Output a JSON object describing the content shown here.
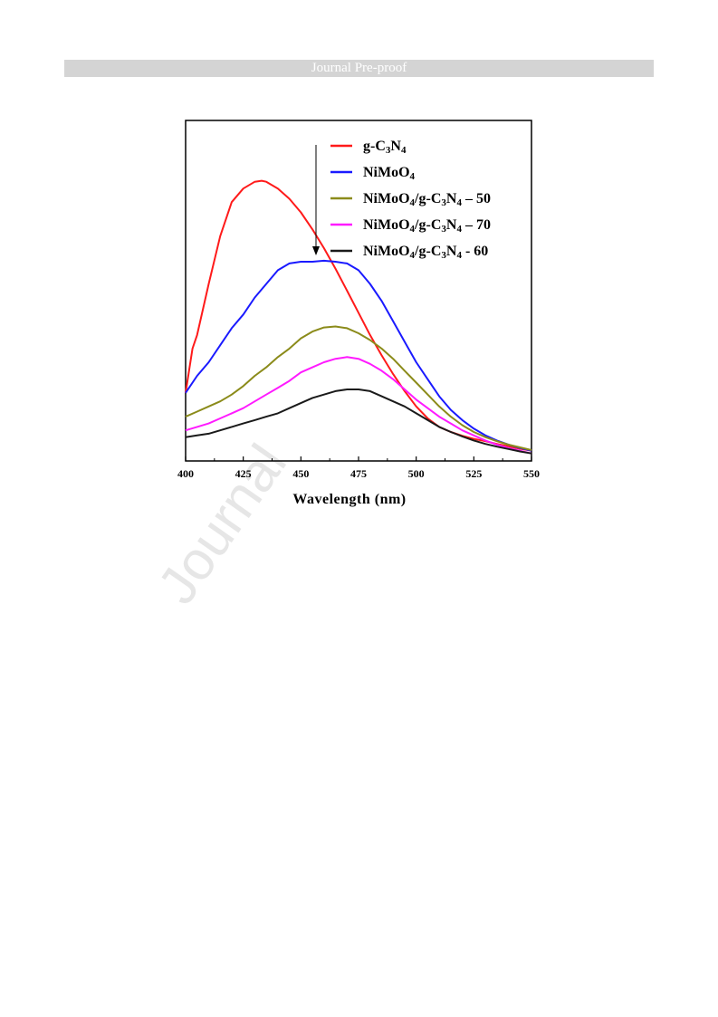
{
  "header": {
    "banner_text": "Journal Pre-proof"
  },
  "watermark": {
    "text": "Journal"
  },
  "chart_data": {
    "type": "line",
    "title": "",
    "xlabel": "Wavelength (nm)",
    "ylabel": "",
    "xlim": [
      400,
      550
    ],
    "ylim": [
      0,
      1
    ],
    "xticks": [
      400,
      425,
      450,
      475,
      500,
      525,
      550
    ],
    "grid": false,
    "legend_position": "top-right",
    "legend_arrow": "down",
    "series": [
      {
        "name": "g-C3N4",
        "legend_parts": [
          [
            "g-C",
            ""
          ],
          [
            "3",
            "sub"
          ],
          [
            "N",
            ""
          ],
          [
            "4",
            "sub"
          ]
        ],
        "color": "#ff1a1a",
        "x": [
          400,
          403,
          405,
          410,
          415,
          420,
          425,
          430,
          433,
          435,
          440,
          445,
          450,
          455,
          460,
          465,
          470,
          475,
          480,
          485,
          490,
          495,
          500,
          505,
          510,
          515,
          520,
          525,
          530,
          535,
          540,
          545,
          550
        ],
        "y": [
          0.2,
          0.33,
          0.37,
          0.52,
          0.66,
          0.76,
          0.8,
          0.82,
          0.823,
          0.82,
          0.8,
          0.77,
          0.73,
          0.68,
          0.625,
          0.565,
          0.5,
          0.435,
          0.37,
          0.31,
          0.255,
          0.205,
          0.16,
          0.125,
          0.1,
          0.085,
          0.074,
          0.065,
          0.058,
          0.05,
          0.043,
          0.036,
          0.03
        ]
      },
      {
        "name": "NiMoO4",
        "legend_parts": [
          [
            "NiMoO",
            ""
          ],
          [
            "4",
            "sub"
          ]
        ],
        "color": "#1a1aff",
        "x": [
          400,
          405,
          410,
          415,
          420,
          425,
          430,
          435,
          440,
          445,
          450,
          455,
          460,
          465,
          470,
          475,
          480,
          485,
          490,
          495,
          500,
          505,
          510,
          515,
          520,
          525,
          530,
          535,
          540,
          545,
          550
        ],
        "y": [
          0.2,
          0.25,
          0.29,
          0.34,
          0.39,
          0.43,
          0.48,
          0.52,
          0.56,
          0.58,
          0.585,
          0.585,
          0.588,
          0.585,
          0.58,
          0.56,
          0.52,
          0.47,
          0.41,
          0.35,
          0.29,
          0.24,
          0.19,
          0.15,
          0.12,
          0.095,
          0.075,
          0.06,
          0.048,
          0.038,
          0.03
        ]
      },
      {
        "name": "NiMoO4/g-C3N4 – 50",
        "legend_parts": [
          [
            "NiMoO",
            ""
          ],
          [
            "4",
            "sub"
          ],
          [
            "/g-C",
            ""
          ],
          [
            "3",
            "sub"
          ],
          [
            "N",
            ""
          ],
          [
            "4",
            "sub"
          ],
          [
            " – 50",
            ""
          ]
        ],
        "color": "#8b8b1a",
        "x": [
          400,
          405,
          410,
          415,
          420,
          425,
          430,
          435,
          440,
          445,
          450,
          455,
          460,
          465,
          470,
          475,
          480,
          485,
          490,
          495,
          500,
          505,
          510,
          515,
          520,
          525,
          530,
          535,
          540,
          545,
          550
        ],
        "y": [
          0.13,
          0.145,
          0.16,
          0.175,
          0.195,
          0.22,
          0.25,
          0.275,
          0.305,
          0.33,
          0.36,
          0.38,
          0.392,
          0.395,
          0.39,
          0.375,
          0.355,
          0.33,
          0.3,
          0.265,
          0.23,
          0.195,
          0.16,
          0.13,
          0.105,
          0.085,
          0.07,
          0.058,
          0.048,
          0.04,
          0.032
        ]
      },
      {
        "name": "NiMoO4/g-C3N4 – 70",
        "legend_parts": [
          [
            "NiMoO",
            ""
          ],
          [
            "4",
            "sub"
          ],
          [
            "/g-C",
            ""
          ],
          [
            "3",
            "sub"
          ],
          [
            "N",
            ""
          ],
          [
            "4",
            "sub"
          ],
          [
            " – 70",
            ""
          ]
        ],
        "color": "#ff1aff",
        "x": [
          400,
          405,
          410,
          415,
          420,
          425,
          430,
          435,
          440,
          445,
          450,
          455,
          460,
          465,
          470,
          475,
          480,
          485,
          490,
          495,
          500,
          505,
          510,
          515,
          520,
          525,
          530,
          535,
          540,
          545,
          550
        ],
        "y": [
          0.09,
          0.1,
          0.11,
          0.125,
          0.14,
          0.155,
          0.175,
          0.195,
          0.215,
          0.235,
          0.26,
          0.275,
          0.29,
          0.3,
          0.305,
          0.3,
          0.285,
          0.265,
          0.24,
          0.21,
          0.18,
          0.155,
          0.13,
          0.11,
          0.09,
          0.075,
          0.06,
          0.048,
          0.038,
          0.03,
          0.022
        ]
      },
      {
        "name": "NiMoO4/g-C3N4 - 60",
        "legend_parts": [
          [
            "NiMoO",
            ""
          ],
          [
            "4",
            "sub"
          ],
          [
            "/g-C",
            ""
          ],
          [
            "3",
            "sub"
          ],
          [
            "N",
            ""
          ],
          [
            "4",
            "sub"
          ],
          [
            " - 60",
            ""
          ]
        ],
        "color": "#1a1a1a",
        "x": [
          400,
          405,
          410,
          415,
          420,
          425,
          430,
          435,
          440,
          445,
          450,
          455,
          460,
          465,
          470,
          475,
          480,
          485,
          490,
          495,
          500,
          505,
          510,
          515,
          520,
          525,
          530,
          535,
          540,
          545,
          550
        ],
        "y": [
          0.07,
          0.075,
          0.08,
          0.09,
          0.1,
          0.11,
          0.12,
          0.13,
          0.14,
          0.155,
          0.17,
          0.185,
          0.195,
          0.205,
          0.21,
          0.21,
          0.205,
          0.19,
          0.175,
          0.16,
          0.14,
          0.12,
          0.1,
          0.085,
          0.072,
          0.06,
          0.05,
          0.042,
          0.035,
          0.028,
          0.022
        ]
      }
    ]
  }
}
